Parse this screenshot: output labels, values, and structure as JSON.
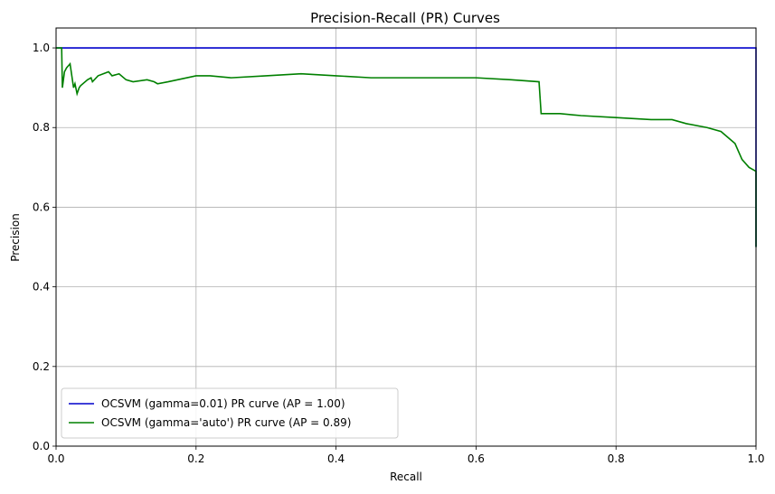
{
  "chart_data": {
    "type": "line",
    "title": "Precision-Recall (PR) Curves",
    "xlabel": "Recall",
    "ylabel": "Precision",
    "xlim": [
      0,
      1
    ],
    "ylim": [
      0,
      1.05
    ],
    "xticks": [
      "0.0",
      "0.2",
      "0.4",
      "0.6",
      "0.8",
      "1.0"
    ],
    "yticks": [
      "0.0",
      "0.2",
      "0.4",
      "0.6",
      "0.8",
      "1.0"
    ],
    "grid": true,
    "legend_position": "lower-left",
    "series": [
      {
        "name": "OCSVM (gamma=0.01) PR curve (AP = 1.00)",
        "color": "#0000cc",
        "x": [
          0.0,
          1.0,
          1.0
        ],
        "y": [
          1.0,
          1.0,
          0.5
        ]
      },
      {
        "name": "OCSVM (gamma='auto') PR curve (AP = 0.89)",
        "color": "#008000",
        "x": [
          0.0,
          0.008,
          0.009,
          0.012,
          0.015,
          0.02,
          0.025,
          0.027,
          0.03,
          0.033,
          0.035,
          0.045,
          0.05,
          0.052,
          0.06,
          0.075,
          0.08,
          0.09,
          0.1,
          0.11,
          0.13,
          0.14,
          0.145,
          0.16,
          0.2,
          0.22,
          0.25,
          0.3,
          0.35,
          0.4,
          0.45,
          0.5,
          0.55,
          0.6,
          0.65,
          0.69,
          0.693,
          0.7,
          0.72,
          0.75,
          0.8,
          0.85,
          0.88,
          0.9,
          0.93,
          0.95,
          0.97,
          0.98,
          0.99,
          1.0,
          1.0
        ],
        "y": [
          1.0,
          1.0,
          0.9,
          0.94,
          0.95,
          0.96,
          0.9,
          0.91,
          0.885,
          0.9,
          0.905,
          0.92,
          0.925,
          0.915,
          0.93,
          0.94,
          0.93,
          0.935,
          0.92,
          0.915,
          0.92,
          0.915,
          0.91,
          0.915,
          0.93,
          0.93,
          0.925,
          0.93,
          0.935,
          0.93,
          0.925,
          0.925,
          0.925,
          0.925,
          0.92,
          0.915,
          0.835,
          0.835,
          0.835,
          0.83,
          0.825,
          0.82,
          0.82,
          0.81,
          0.8,
          0.79,
          0.76,
          0.72,
          0.7,
          0.69,
          0.5
        ]
      }
    ]
  }
}
